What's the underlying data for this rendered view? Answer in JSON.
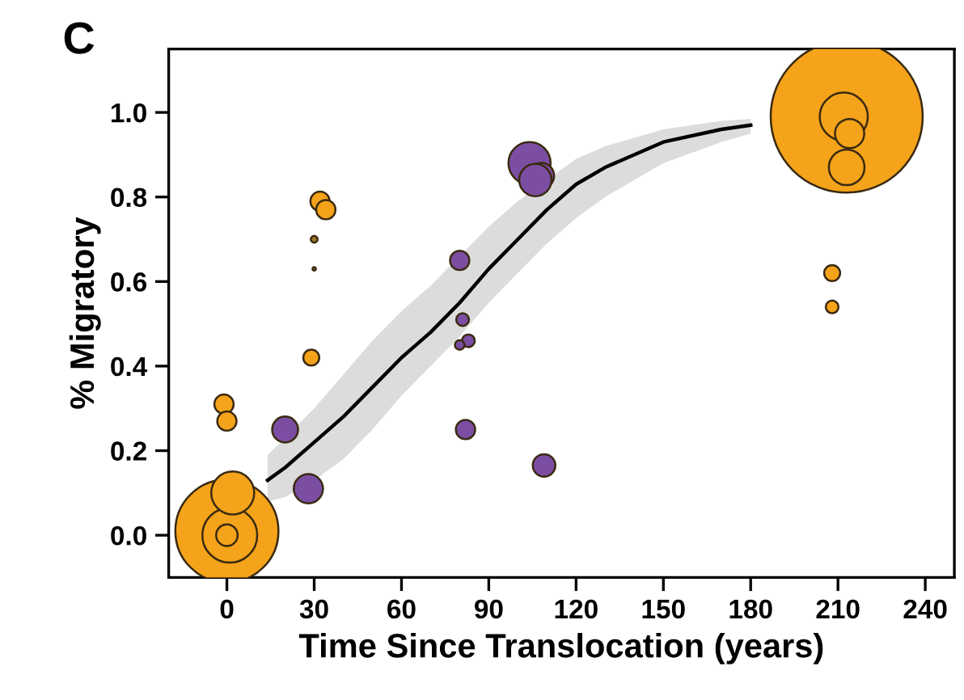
{
  "chart_data": {
    "type": "bubble",
    "xlabel": "Time Since Translocation (years)",
    "ylabel": "% Migratory",
    "annotations": [
      "C"
    ],
    "xlim": [
      -20,
      250
    ],
    "ylim": [
      -0.1,
      1.15
    ],
    "xticks": [
      0,
      30,
      60,
      90,
      120,
      150,
      180,
      210,
      240
    ],
    "yticks": [
      {
        "value": 0,
        "label": "0.0"
      },
      {
        "value": 0.2,
        "label": "0.2"
      },
      {
        "value": 0.4,
        "label": "0.4"
      },
      {
        "value": 0.6,
        "label": "0.6"
      },
      {
        "value": 0.8,
        "label": "0.8"
      },
      {
        "value": 1.0,
        "label": "1.0"
      }
    ],
    "grid": false,
    "series": [
      {
        "type": "line",
        "color": "#000000",
        "marker": "none",
        "line_style": "solid",
        "x": [
          14,
          20,
          30,
          40,
          50,
          60,
          70,
          80,
          90,
          100,
          110,
          120,
          130,
          150,
          170,
          180
        ],
        "values": [
          0.13,
          0.16,
          0.22,
          0.28,
          0.35,
          0.42,
          0.48,
          0.55,
          0.63,
          0.7,
          0.77,
          0.83,
          0.87,
          0.93,
          0.96,
          0.97
        ],
        "lower": [
          0.08,
          0.09,
          0.13,
          0.18,
          0.25,
          0.33,
          0.4,
          0.47,
          0.55,
          0.62,
          0.69,
          0.75,
          0.8,
          0.88,
          0.93,
          0.95
        ],
        "upper": [
          0.19,
          0.23,
          0.3,
          0.38,
          0.46,
          0.53,
          0.59,
          0.66,
          0.73,
          0.79,
          0.84,
          0.89,
          0.92,
          0.96,
          0.98,
          0.985
        ]
      },
      {
        "color": "#f5a31a",
        "x": [
          0,
          1,
          0,
          2,
          -1,
          0,
          32,
          34,
          29,
          213,
          212,
          214,
          213,
          208,
          208
        ],
        "values": [
          0.01,
          0.0,
          0.0,
          0.1,
          0.31,
          0.27,
          0.79,
          0.77,
          0.42,
          0.99,
          0.99,
          0.95,
          0.87,
          0.62,
          0.54
        ],
        "sizes": [
          0.46,
          0.13,
          0.02,
          0.08,
          0.016,
          0.016,
          0.016,
          0.016,
          0.011,
          1.0,
          0.1,
          0.037,
          0.055,
          0.011,
          0.007
        ]
      },
      {
        "color": "#a07828",
        "x": [
          30,
          30
        ],
        "values": [
          0.7,
          0.63
        ],
        "sizes": [
          0.002,
          0.0005
        ]
      },
      {
        "color": "#7b4ea3",
        "x": [
          20,
          28,
          80,
          81,
          83,
          80,
          82,
          104,
          108,
          106,
          109
        ],
        "values": [
          0.25,
          0.11,
          0.65,
          0.51,
          0.46,
          0.45,
          0.25,
          0.88,
          0.85,
          0.84,
          0.165
        ],
        "sizes": [
          0.029,
          0.037,
          0.016,
          0.007,
          0.007,
          0.004,
          0.016,
          0.077,
          0.029,
          0.045,
          0.022
        ]
      }
    ]
  }
}
